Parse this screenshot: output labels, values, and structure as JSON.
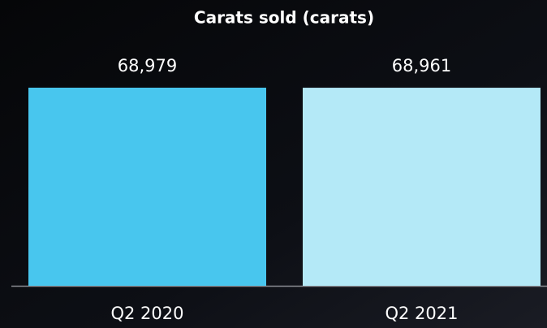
{
  "chart_data": {
    "type": "bar",
    "title": "Carats sold (carats)",
    "categories": [
      "Q2 2020",
      "Q2 2021"
    ],
    "series": [
      {
        "name": null,
        "values": [
          68979,
          68961
        ],
        "value_labels": [
          "68,979",
          "68,961"
        ],
        "colors": [
          "#48c6ee",
          "#b4e9f7"
        ]
      }
    ]
  }
}
